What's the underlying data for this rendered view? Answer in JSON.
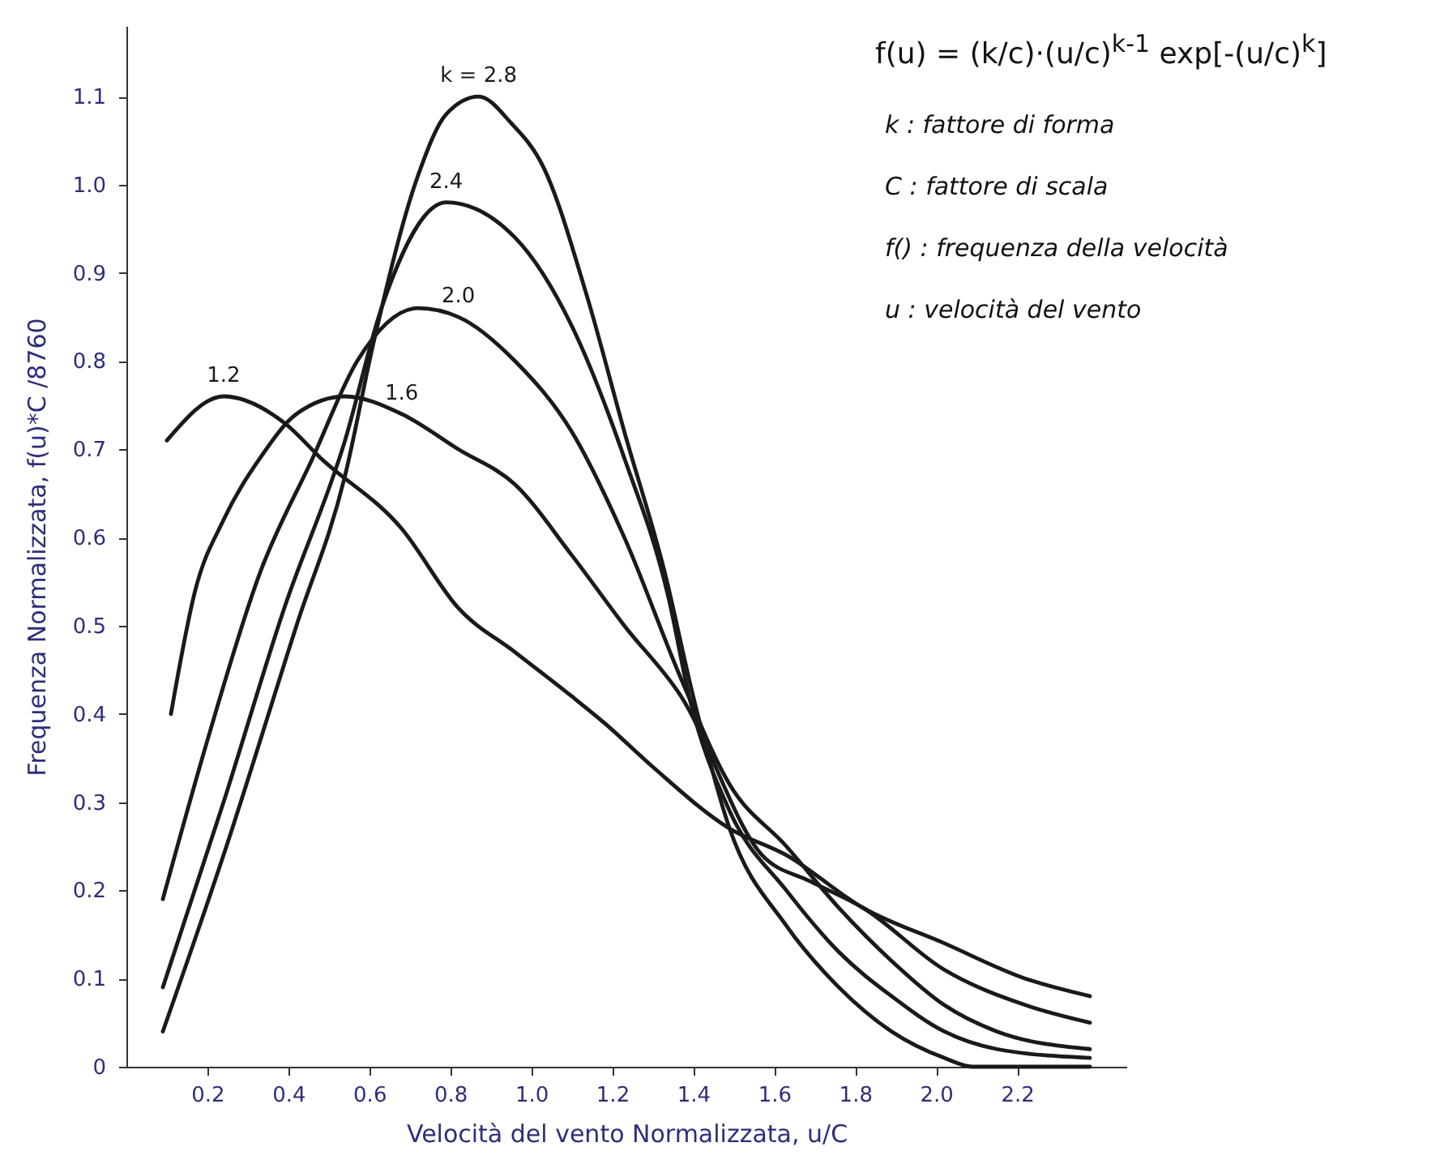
{
  "chart_data": {
    "type": "line",
    "xlabel": "Velocità del vento Normalizzata,  u/C",
    "ylabel": "Frequenza Normalizzata, f(u)*C /8760",
    "xlim": [
      0,
      2.47
    ],
    "ylim": [
      0,
      1.18
    ],
    "xticks": [
      0.2,
      0.4,
      0.6,
      0.8,
      {
        "value": 1,
        "label": "1.0"
      },
      1.2,
      1.4,
      1.6,
      1.8,
      {
        "value": 2,
        "label": "2.0"
      },
      2.2
    ],
    "yticks": [
      0,
      0.1,
      0.2,
      0.3,
      0.4,
      0.5,
      0.6,
      0.7,
      0.8,
      0.9,
      {
        "value": 1,
        "label": "1.0"
      },
      1.1
    ],
    "grid": false,
    "line_style": "solid",
    "series": [
      {
        "name": "k = 2.8",
        "color": "#1a1a1a",
        "x": [
          0.09,
          0.24,
          0.42,
          0.54,
          0.61,
          0.72,
          0.79,
          0.87,
          0.95,
          1.03,
          1.14,
          1.23,
          1.33,
          1.4,
          1.49,
          1.63,
          1.76,
          1.89,
          2.02,
          2.09,
          2.38
        ],
        "values": [
          0.04,
          0.24,
          0.5,
          0.67,
          0.82,
          1.01,
          1.08,
          1.1,
          1.07,
          1.02,
          0.87,
          0.72,
          0.56,
          0.42,
          0.27,
          0.16,
          0.09,
          0.04,
          0.01,
          0,
          0
        ]
      },
      {
        "name": "2.4",
        "color": "#1a1a1a",
        "x": [
          0.09,
          0.24,
          0.39,
          0.54,
          0.63,
          0.79,
          0.96,
          1.1,
          1.23,
          1.34,
          1.39,
          1.49,
          1.63,
          1.76,
          1.89,
          2.02,
          2.15,
          2.38
        ],
        "values": [
          0.09,
          0.3,
          0.52,
          0.71,
          0.86,
          0.98,
          0.94,
          0.84,
          0.69,
          0.53,
          0.42,
          0.29,
          0.2,
          0.13,
          0.08,
          0.04,
          0.02,
          0.01
        ]
      },
      {
        "name": "2.0",
        "color": "#1a1a1a",
        "x": [
          0.09,
          0.2,
          0.33,
          0.46,
          0.57,
          0.72,
          0.82,
          0.96,
          1.1,
          1.23,
          1.37,
          1.49,
          1.63,
          1.76,
          1.89,
          2.02,
          2.15,
          2.38
        ],
        "values": [
          0.19,
          0.37,
          0.56,
          0.69,
          0.8,
          0.86,
          0.85,
          0.8,
          0.72,
          0.6,
          0.44,
          0.32,
          0.25,
          0.18,
          0.12,
          0.07,
          0.04,
          0.02
        ]
      },
      {
        "name": "1.6",
        "color": "#1a1a1a",
        "x": [
          0.11,
          0.17,
          0.24,
          0.33,
          0.42,
          0.54,
          0.68,
          0.82,
          0.96,
          1.1,
          1.23,
          1.37,
          1.57,
          1.69,
          1.82,
          2.02,
          2.22,
          2.38
        ],
        "values": [
          0.4,
          0.54,
          0.62,
          0.69,
          0.74,
          0.76,
          0.74,
          0.7,
          0.66,
          0.58,
          0.5,
          0.42,
          0.24,
          0.21,
          0.18,
          0.11,
          0.07,
          0.05
        ]
      },
      {
        "name": "1.2",
        "color": "#1a1a1a",
        "x": [
          0.1,
          0.24,
          0.39,
          0.48,
          0.68,
          0.82,
          0.96,
          1.1,
          1.18,
          1.3,
          1.49,
          1.63,
          1.82,
          2.02,
          2.22,
          2.38
        ],
        "values": [
          0.71,
          0.76,
          0.73,
          0.69,
          0.61,
          0.52,
          0.47,
          0.42,
          0.39,
          0.34,
          0.27,
          0.24,
          0.18,
          0.14,
          0.1,
          0.08
        ]
      }
    ],
    "annotations": [
      "f(u) = (k/c)·(u/c)$^{k-1}$ exp[-(u/c)$^{k}$]",
      "k : fattore di forma",
      "C : fattore di scala",
      "f() : frequenza della velocità",
      "u : velocità del vento"
    ]
  }
}
